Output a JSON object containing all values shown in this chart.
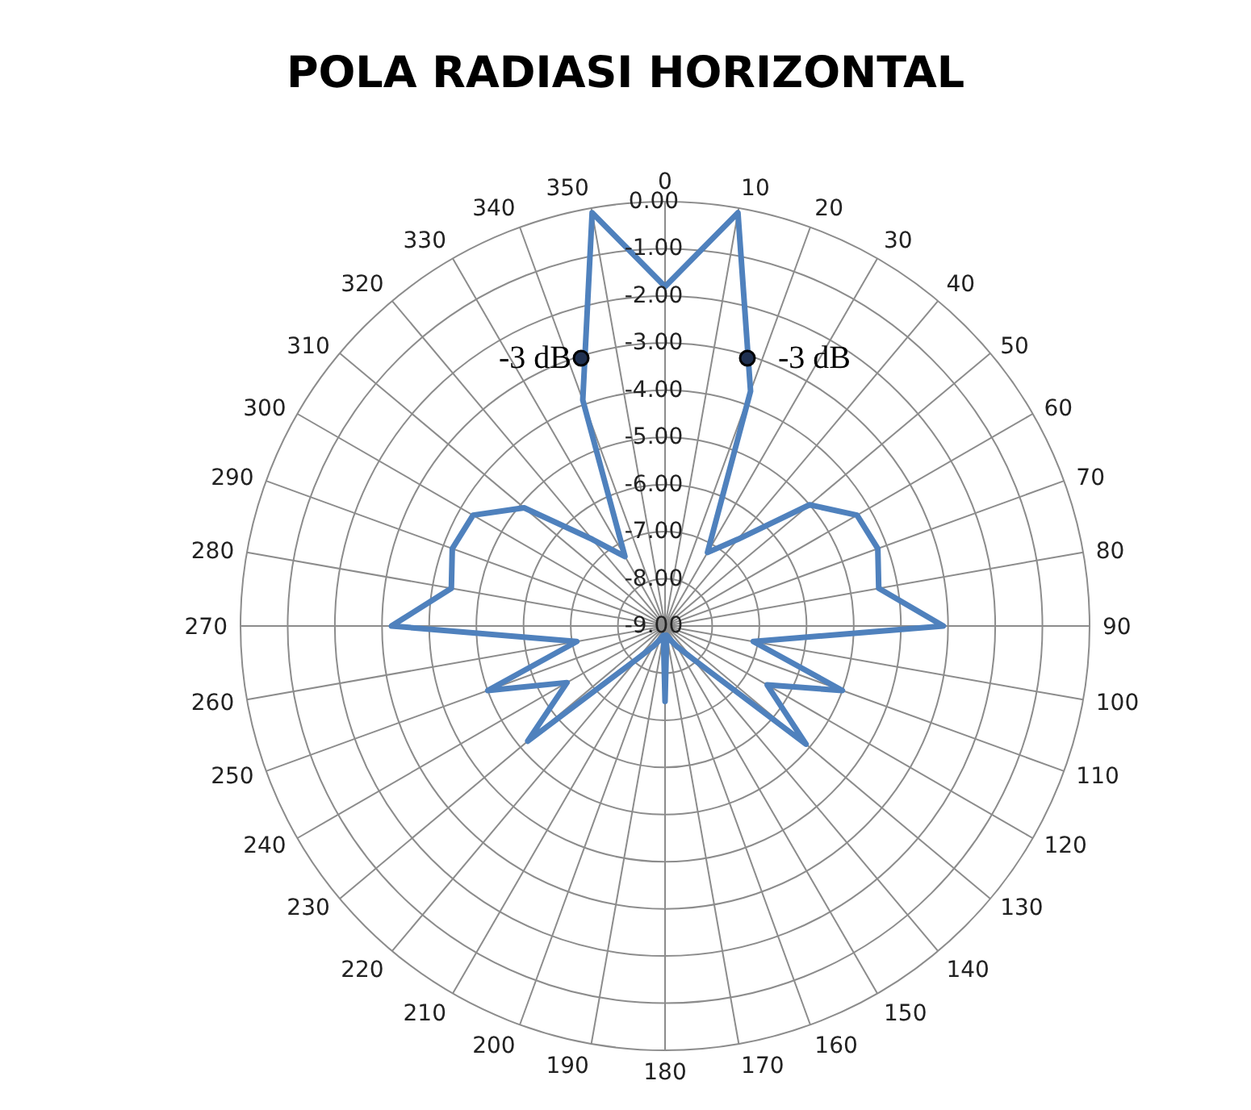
{
  "chart_data": {
    "type": "radar",
    "title": "POLA RADIASI HORIZONTAL",
    "categories": [
      "0",
      "10",
      "20",
      "30",
      "40",
      "50",
      "60",
      "70",
      "80",
      "90",
      "100",
      "110",
      "120",
      "130",
      "140",
      "150",
      "160",
      "170",
      "180",
      "190",
      "200",
      "210",
      "220",
      "230",
      "240",
      "250",
      "260",
      "270",
      "280",
      "290",
      "300",
      "310",
      "320",
      "330",
      "340",
      "350"
    ],
    "series": [
      {
        "color": "#4f81bd",
        "values": [
          -1.8,
          -0.1,
          -3.7,
          -7.2,
          -6.6,
          -5.0,
          -4.3,
          -4.2,
          -4.4,
          -3.1,
          -7.1,
          -5.0,
          -6.5,
          -5.1,
          -8.1,
          -8.5,
          -8.7,
          -8.8,
          -7.4,
          -8.8,
          -8.7,
          -8.5,
          -8.1,
          -5.2,
          -6.6,
          -5.0,
          -7.1,
          -3.2,
          -4.4,
          -4.2,
          -4.3,
          -5.1,
          -6.6,
          -7.3,
          -3.9,
          -0.1
        ]
      }
    ],
    "ylim": [
      -9,
      0
    ],
    "yticks": [
      {
        "value": 0,
        "label": "0.00"
      },
      {
        "value": -1,
        "label": "-1.00"
      },
      {
        "value": -2,
        "label": "-2.00"
      },
      {
        "value": -3,
        "label": "-3.00"
      },
      {
        "value": -4,
        "label": "-4.00"
      },
      {
        "value": -5,
        "label": "-5.00"
      },
      {
        "value": -6,
        "label": "-6.00"
      },
      {
        "value": -7,
        "label": "-7.00"
      },
      {
        "value": -8,
        "label": "-8.00"
      },
      {
        "value": -9,
        "label": "-9.00"
      }
    ],
    "grid": true,
    "annotations": [
      "-3 dB",
      "-3 dB"
    ]
  }
}
